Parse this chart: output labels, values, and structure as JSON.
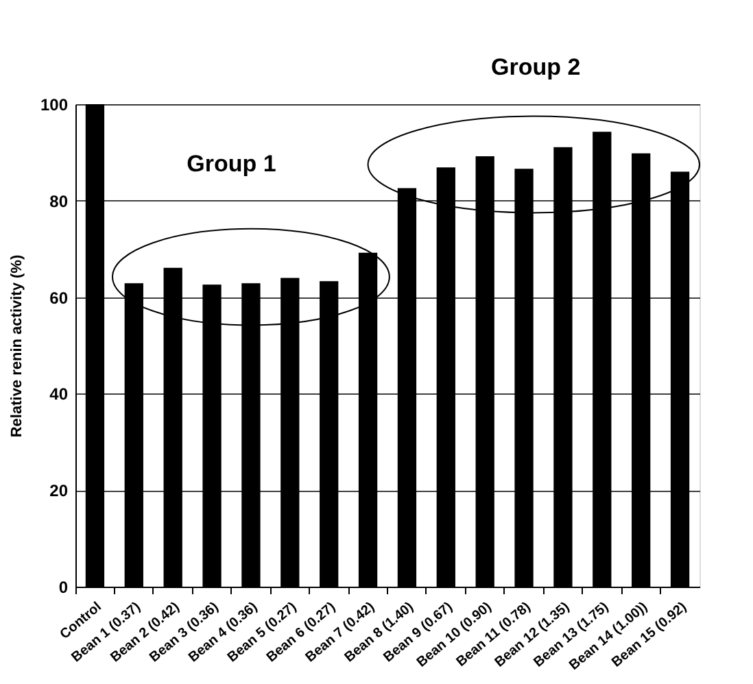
{
  "chart_data": {
    "type": "bar",
    "ylabel": "Relative renin activity (%)",
    "categories": [
      "Control",
      "Bean 1 (0.37)",
      "Bean 2 (0.42)",
      "Bean 3 (0.36)",
      "Bean 4 (0.36)",
      "Bean 5 (0.27)",
      "Bean 6 (0.27)",
      "Bean 7 (0.42)",
      "Bean 8 (1.40)",
      "Bean 9 (0.67)",
      "Bean 10 (0.90)",
      "Bean 11 (0.78)",
      "Bean 12 (1.35)",
      "Bean 13 (1.75)",
      "Bean 14 (1.00))",
      "Bean 15 (0.92)"
    ],
    "values": [
      100,
      62.9,
      66.1,
      62.6,
      62.9,
      64.0,
      63.3,
      69.2,
      82.6,
      86.9,
      89.2,
      86.6,
      91.1,
      94.3,
      89.8,
      86.0
    ],
    "color": "#000000",
    "ylim": [
      0,
      100
    ],
    "yticks": [
      0,
      20,
      40,
      60,
      80,
      100
    ],
    "grid": "y",
    "annotations": [
      "Group 1",
      "Group 2"
    ]
  }
}
